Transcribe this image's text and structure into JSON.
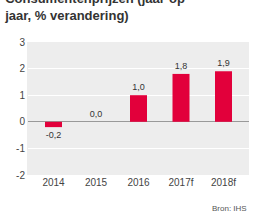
{
  "chart_data": {
    "type": "bar",
    "title": "Consumentenprijzen (jaar-op-jaar, % verandering)",
    "categories": [
      "2014",
      "2015",
      "2016",
      "2017f",
      "2018f"
    ],
    "values": [
      -0.2,
      0.0,
      1.0,
      1.8,
      1.9
    ],
    "value_labels": [
      "-0,2",
      "0,0",
      "1,0",
      "1,8",
      "1,9"
    ],
    "color": "#e2003b",
    "ylim": [
      -2,
      3
    ],
    "yticks": [
      -2,
      -1,
      0,
      1,
      2,
      3
    ],
    "grid": true,
    "data_labels": true,
    "annotations": [
      "Bron: IHS"
    ]
  }
}
